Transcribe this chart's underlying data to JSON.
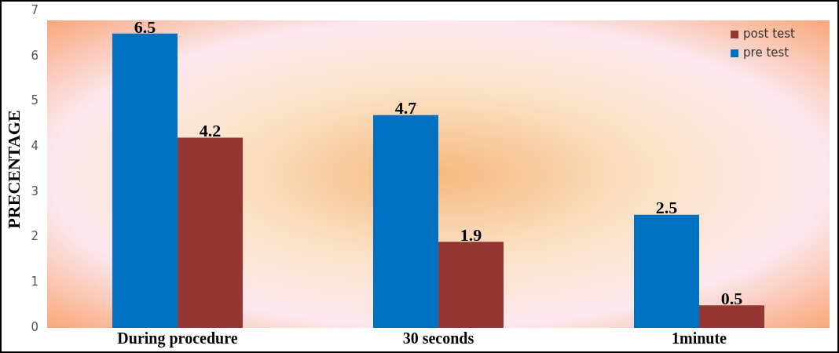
{
  "chart_data": {
    "type": "bar",
    "ylabel": "PRECENTAGE",
    "categories": [
      "During procedure",
      "30 seconds",
      "1minute"
    ],
    "series": [
      {
        "name": "pre test",
        "color": "#0070c0",
        "values": [
          6.5,
          4.7,
          2.5
        ]
      },
      {
        "name": "post test",
        "color": "#943634",
        "values": [
          4.2,
          1.9,
          0.5
        ]
      }
    ],
    "ylim": [
      0,
      7
    ],
    "yticks": [
      0,
      1,
      2,
      3,
      4,
      5,
      6,
      7
    ],
    "data_labels": true,
    "legend": "top right",
    "grid": false
  }
}
